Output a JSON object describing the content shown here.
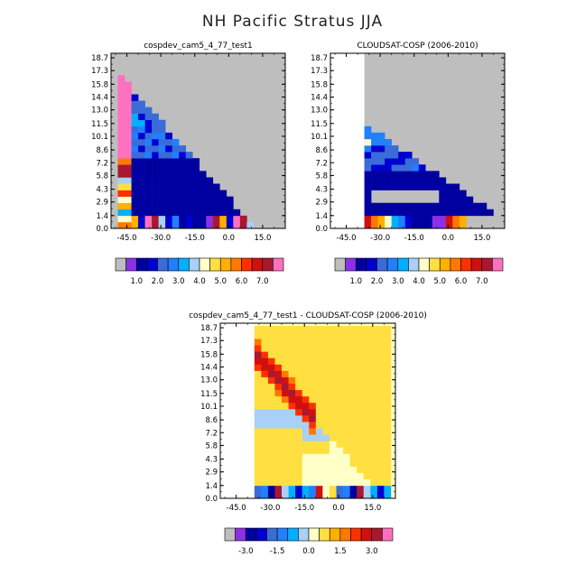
{
  "title": "NH Pacific Stratus JJA",
  "colors": {
    "missing": "#bebebe",
    "panel_scale": [
      "#8c30e6",
      "#0000a0",
      "#0000d0",
      "#3a6cd8",
      "#2080ff",
      "#00b0ff",
      "#a8d0f8",
      "#ffffc8",
      "#ffe040",
      "#ffb000",
      "#ff7800",
      "#ff3000",
      "#d01010",
      "#a81830",
      "#ff70c0"
    ],
    "diff_scale": [
      "#8c30e6",
      "#0000a0",
      "#0000d0",
      "#3a6cd8",
      "#2080ff",
      "#00b0ff",
      "#a8d0f8",
      "#ffffc8",
      "#ffe040",
      "#ffb000",
      "#ff7800",
      "#ff3000",
      "#d01010",
      "#a81830",
      "#ff70c0"
    ]
  },
  "chart_data": [
    {
      "type": "heatmap",
      "title": "cospdev_cam5_4_77_test1",
      "y_ticks": [
        "0.0",
        "1.4",
        "2.9",
        "4.3",
        "5.8",
        "7.2",
        "8.6",
        "10.1",
        "11.5",
        "13.0",
        "14.4",
        "15.8",
        "17.3",
        "18.7"
      ],
      "x_ticks": [
        "-45.0",
        "-30.0",
        "-15.0",
        "0.0",
        "15.0"
      ],
      "xlim": [
        -52,
        25
      ],
      "ylim": [
        0,
        19.2
      ],
      "colorbar_labels": [
        "1.0",
        "2.0",
        "3.0",
        "4.0",
        "5.0",
        "6.0",
        "7.0"
      ],
      "colorbar_levels": [
        0.5,
        1.0,
        1.5,
        2.0,
        2.5,
        3.0,
        3.5,
        4.0,
        4.5,
        5.0,
        5.5,
        6.0,
        6.5,
        7.0
      ],
      "cell_size": {
        "lon": 3.0,
        "alt": 0.5
      }
    },
    {
      "type": "heatmap",
      "title": "CLOUDSAT-COSP (2006-2010)",
      "y_ticks": [
        "0.0",
        "1.4",
        "2.9",
        "4.3",
        "5.8",
        "7.2",
        "8.6",
        "10.1",
        "11.5",
        "13.0",
        "14.4",
        "15.8",
        "17.3",
        "18.7"
      ],
      "x_ticks": [
        "-45.0",
        "-30.0",
        "-15.0",
        "0.0",
        "15.0"
      ],
      "xlim": [
        -52,
        25
      ],
      "ylim": [
        0,
        19.2
      ],
      "colorbar_labels": [
        "1.0",
        "2.0",
        "3.0",
        "4.0",
        "5.0",
        "6.0",
        "7.0"
      ],
      "colorbar_levels": [
        0.5,
        1.0,
        1.5,
        2.0,
        2.5,
        3.0,
        3.5,
        4.0,
        4.5,
        5.0,
        5.5,
        6.0,
        6.5,
        7.0
      ],
      "cell_size": {
        "lon": 3.0,
        "alt": 0.5
      }
    },
    {
      "type": "heatmap",
      "title": "cospdev_cam5_4_77_test1 - CLOUDSAT-COSP (2006-2010)",
      "y_ticks": [
        "0.0",
        "1.4",
        "2.9",
        "4.3",
        "5.8",
        "7.2",
        "8.6",
        "10.1",
        "11.5",
        "13.0",
        "14.4",
        "15.8",
        "17.3",
        "18.7"
      ],
      "x_ticks": [
        "-45.0",
        "-30.0",
        "-15.0",
        "0.0",
        "15.0"
      ],
      "xlim": [
        -52,
        25
      ],
      "ylim": [
        0,
        19.2
      ],
      "colorbar_labels": [
        "-3.0",
        "-1.5",
        "0.0",
        "1.5",
        "3.0"
      ],
      "colorbar_levels": [
        -3.5,
        -3.0,
        -2.5,
        -2.0,
        -1.5,
        -1.0,
        -0.5,
        0.0,
        0.5,
        1.0,
        1.5,
        2.0,
        2.5,
        3.0
      ],
      "cell_size": {
        "lon": 3.0,
        "alt": 0.5
      }
    }
  ]
}
